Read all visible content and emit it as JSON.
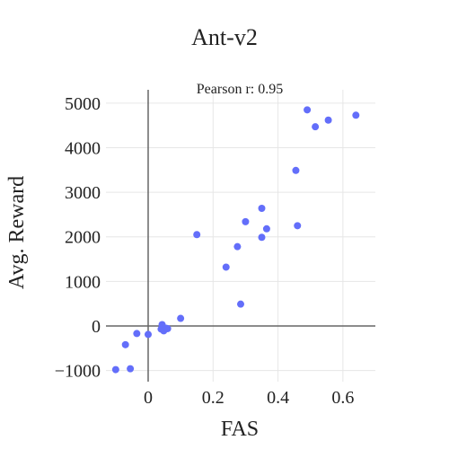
{
  "chart_data": {
    "type": "scatter",
    "title": "Ant-v2",
    "xlabel": "FAS",
    "ylabel": "Avg. Reward",
    "annotation": "Pearson r: 0.95",
    "xlim": [
      -0.13,
      0.7
    ],
    "ylim": [
      -1250,
      5300
    ],
    "x_ticks": [
      0,
      0.2,
      0.4,
      0.6
    ],
    "x_tick_labels": [
      "0",
      "0.2",
      "0.4",
      "0.6"
    ],
    "y_ticks": [
      -1000,
      0,
      1000,
      2000,
      3000,
      4000,
      5000
    ],
    "y_tick_labels": [
      "−1000",
      "0",
      "1000",
      "2000",
      "3000",
      "4000",
      "5000"
    ],
    "grid": true,
    "marker_color": "#636efa",
    "points": [
      {
        "x": -0.1,
        "y": -980
      },
      {
        "x": -0.055,
        "y": -960
      },
      {
        "x": -0.07,
        "y": -420
      },
      {
        "x": -0.035,
        "y": -170
      },
      {
        "x": 0.0,
        "y": -190
      },
      {
        "x": 0.04,
        "y": -70
      },
      {
        "x": 0.043,
        "y": 30
      },
      {
        "x": 0.048,
        "y": -110
      },
      {
        "x": 0.055,
        "y": -50
      },
      {
        "x": 0.06,
        "y": -60
      },
      {
        "x": 0.1,
        "y": 170
      },
      {
        "x": 0.15,
        "y": 2050
      },
      {
        "x": 0.24,
        "y": 1320
      },
      {
        "x": 0.275,
        "y": 1780
      },
      {
        "x": 0.285,
        "y": 490
      },
      {
        "x": 0.3,
        "y": 2340
      },
      {
        "x": 0.35,
        "y": 2640
      },
      {
        "x": 0.35,
        "y": 1990
      },
      {
        "x": 0.365,
        "y": 2180
      },
      {
        "x": 0.455,
        "y": 3490
      },
      {
        "x": 0.46,
        "y": 2250
      },
      {
        "x": 0.49,
        "y": 4850
      },
      {
        "x": 0.515,
        "y": 4470
      },
      {
        "x": 0.555,
        "y": 4620
      },
      {
        "x": 0.64,
        "y": 4730
      }
    ]
  }
}
